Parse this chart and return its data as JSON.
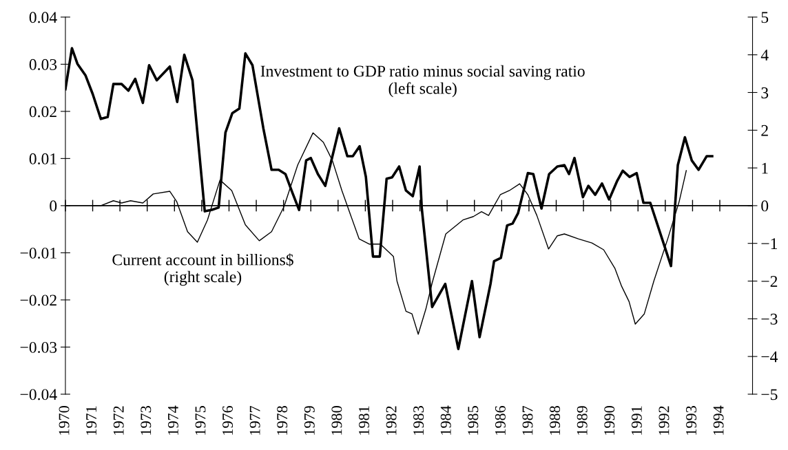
{
  "chart_data": {
    "type": "line",
    "xlim": [
      1970,
      1995.2
    ],
    "xticks": [
      1970,
      1971,
      1972,
      1973,
      1974,
      1975,
      1976,
      1977,
      1978,
      1979,
      1980,
      1981,
      1982,
      1983,
      1984,
      1985,
      1986,
      1987,
      1988,
      1989,
      1990,
      1991,
      1992,
      1993,
      1994
    ],
    "ylim": [
      -0.04,
      0.04
    ],
    "yticks": [
      -0.04,
      -0.03,
      -0.02,
      -0.01,
      0,
      0.01,
      0.02,
      0.03,
      0.04
    ],
    "y2lim": [
      -5,
      5
    ],
    "y2ticks": [
      -5,
      -4,
      -3,
      -2,
      -1,
      0,
      1,
      2,
      3,
      4,
      5
    ],
    "legend": false,
    "grid": false,
    "ref_lines": [
      {
        "axis": "y",
        "value": 0,
        "color": "#000000"
      }
    ],
    "annotations": [
      "Investment to GDP ratio minus social saving ratio\n(left scale)",
      "Current account in billions$\n(right scale)"
    ],
    "series": [
      {
        "color": "#000000",
        "x": [
          1970.0,
          1970.24,
          1970.44,
          1970.74,
          1971.0,
          1971.3,
          1971.55,
          1971.76,
          1972.06,
          1972.31,
          1972.56,
          1972.84,
          1973.07,
          1973.35,
          1973.83,
          1974.1,
          1974.36,
          1974.66,
          1975.11,
          1975.37,
          1975.62,
          1975.87,
          1976.12,
          1976.38,
          1976.6,
          1976.86,
          1977.26,
          1977.56,
          1977.82,
          1978.07,
          1978.32,
          1978.57,
          1978.83,
          1979.0,
          1979.26,
          1979.53,
          1980.04,
          1980.34,
          1980.54,
          1980.79,
          1981.02,
          1981.28,
          1981.53,
          1981.78,
          1981.98,
          1982.24,
          1982.49,
          1982.74,
          1982.99,
          1983.07,
          1983.45,
          1983.93,
          1984.41,
          1984.91,
          1985.19,
          1985.59,
          1985.72,
          1985.97,
          1986.2,
          1986.4,
          1986.6,
          1986.96,
          1987.16,
          1987.46,
          1987.74,
          1988.04,
          1988.3,
          1988.47,
          1988.67,
          1988.98,
          1989.18,
          1989.43,
          1989.68,
          1989.94,
          1990.24,
          1990.44,
          1990.69,
          1990.95,
          1991.2,
          1991.45,
          1992.21,
          1992.46,
          1992.72,
          1992.97,
          1993.22,
          1993.52,
          1993.72
        ],
        "values": [
          0.0247,
          0.0334,
          0.0301,
          0.0276,
          0.0237,
          0.0184,
          0.0188,
          0.0258,
          0.0258,
          0.0244,
          0.0269,
          0.0218,
          0.0298,
          0.0266,
          0.0295,
          0.022,
          0.032,
          0.0266,
          -0.0012,
          -0.0009,
          -0.0004,
          0.0155,
          0.0196,
          0.0206,
          0.0323,
          0.0298,
          0.0164,
          0.0076,
          0.0076,
          0.0067,
          0.0028,
          -0.0009,
          0.0096,
          0.0101,
          0.0067,
          0.0042,
          0.0164,
          0.0105,
          0.0105,
          0.0126,
          0.0061,
          -0.0108,
          -0.0108,
          0.0057,
          0.006,
          0.0083,
          0.0032,
          0.002,
          0.0083,
          -0.0006,
          -0.0215,
          -0.0166,
          -0.0304,
          -0.016,
          -0.0279,
          -0.0166,
          -0.0118,
          -0.0111,
          -0.0042,
          -0.0038,
          -0.0016,
          0.0069,
          0.0067,
          -0.0006,
          0.0067,
          0.0083,
          0.0086,
          0.0067,
          0.0101,
          0.0018,
          0.0042,
          0.0023,
          0.0047,
          0.0013,
          0.0053,
          0.0074,
          0.0061,
          0.0069,
          0.0006,
          0.0006,
          -0.0128,
          0.0086,
          0.0145,
          0.0096,
          0.0076,
          0.0105,
          0.0105
        ]
      },
      {
        "color": "#000000",
        "axis": "y2",
        "x": [
          1971.0,
          1971.3,
          1971.76,
          1972.06,
          1972.39,
          1972.84,
          1973.22,
          1973.83,
          1974.08,
          1974.48,
          1974.84,
          1975.21,
          1975.67,
          1976.1,
          1976.6,
          1977.11,
          1977.56,
          1978.02,
          1978.52,
          1979.08,
          1979.46,
          1979.79,
          1980.14,
          1980.77,
          1981.15,
          1981.55,
          1982.03,
          1982.16,
          1982.49,
          1982.71,
          1982.94,
          1983.22,
          1983.45,
          1983.95,
          1984.58,
          1984.96,
          1985.26,
          1985.52,
          1985.95,
          1986.28,
          1986.66,
          1986.96,
          1987.29,
          1987.72,
          1988.04,
          1988.3,
          1988.81,
          1989.31,
          1989.74,
          1990.15,
          1990.4,
          1990.67,
          1990.9,
          1991.23,
          1991.58,
          1992.09,
          1992.51,
          1992.77
        ],
        "values": [
          0,
          0,
          0.13,
          0.07,
          0.13,
          0.07,
          0.31,
          0.38,
          0.11,
          -0.69,
          -0.97,
          -0.38,
          0.68,
          0.4,
          -0.51,
          -0.93,
          -0.69,
          -0.02,
          1.08,
          1.93,
          1.68,
          1.2,
          0.4,
          -0.88,
          -1.02,
          -1.02,
          -1.35,
          -2.0,
          -2.8,
          -2.87,
          -3.41,
          -2.74,
          -2.05,
          -0.75,
          -0.38,
          -0.29,
          -0.16,
          -0.26,
          0.29,
          0.4,
          0.58,
          0.29,
          -0.26,
          -1.15,
          -0.8,
          -0.75,
          -0.88,
          -0.99,
          -1.17,
          -1.66,
          -2.14,
          -2.54,
          -3.14,
          -2.87,
          -2.0,
          -0.88,
          0.11,
          0.93
        ]
      }
    ]
  }
}
